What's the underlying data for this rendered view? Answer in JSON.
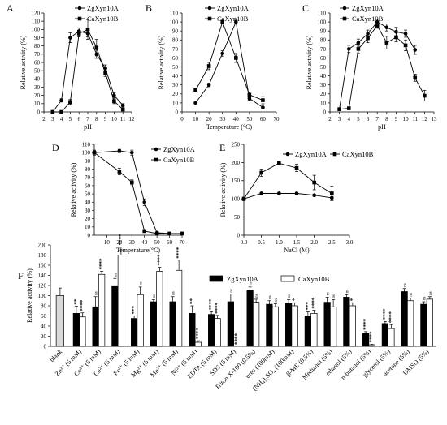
{
  "chart_data": [
    {
      "panel": "A",
      "type": "line",
      "xlabel": "pH",
      "ylabel": "Relative activity (%)",
      "xlim": [
        2,
        12
      ],
      "ylim": [
        0,
        120
      ],
      "xticks": [
        "2",
        "3",
        "4",
        "5",
        "6",
        "7",
        "8",
        "9",
        "10",
        "11",
        "12"
      ],
      "yticks": [
        "0",
        "10",
        "20",
        "30",
        "40",
        "50",
        "60",
        "70",
        "80",
        "90",
        "100",
        "110",
        "120"
      ],
      "legend_position": "top-right",
      "series": [
        {
          "name": "ZgXyn10A",
          "marker": "circle",
          "color": "#000000",
          "x": [
            3,
            4,
            5,
            6,
            7,
            8,
            9,
            10,
            11
          ],
          "y": [
            0,
            14,
            90,
            98,
            95,
            70,
            53,
            20,
            8
          ],
          "err": [
            0,
            2,
            6,
            4,
            4,
            5,
            4,
            3,
            2
          ]
        },
        {
          "name": "CaXyn10B",
          "marker": "square",
          "color": "#000000",
          "x": [
            3,
            4,
            5,
            6,
            7,
            8,
            9,
            10,
            11
          ],
          "y": [
            0,
            0,
            12,
            95,
            100,
            78,
            47,
            13,
            3
          ],
          "err": [
            0,
            0,
            3,
            4,
            12,
            10,
            4,
            3,
            2
          ]
        }
      ]
    },
    {
      "panel": "B",
      "type": "line",
      "xlabel": "Temperature (°C)",
      "ylabel": "Relative activity (%)",
      "xlim": [
        0,
        70
      ],
      "ylim": [
        0,
        110
      ],
      "xticks": [
        "0",
        "10",
        "20",
        "30",
        "40",
        "50",
        "60",
        "70"
      ],
      "yticks": [
        "0",
        "10",
        "20",
        "30",
        "40",
        "50",
        "60",
        "70",
        "80",
        "90",
        "100",
        "110"
      ],
      "legend_position": "top",
      "series": [
        {
          "name": "ZgXyn10A",
          "marker": "circle",
          "color": "#000000",
          "x": [
            10,
            20,
            30,
            40,
            50,
            60
          ],
          "y": [
            10,
            30,
            65,
            100,
            15,
            5
          ],
          "err": [
            1,
            2,
            3,
            2,
            2,
            1
          ]
        },
        {
          "name": "CaXyn10B",
          "marker": "square",
          "color": "#000000",
          "x": [
            10,
            20,
            30,
            40,
            50,
            60
          ],
          "y": [
            24,
            51,
            100,
            60,
            19,
            13
          ],
          "err": [
            2,
            4,
            2,
            5,
            3,
            4
          ]
        }
      ]
    },
    {
      "panel": "C",
      "type": "line",
      "xlabel": "pH",
      "ylabel": "Relative activity (%)",
      "xlim": [
        2,
        13
      ],
      "ylim": [
        0,
        110
      ],
      "xticks": [
        "2",
        "3",
        "4",
        "5",
        "6",
        "7",
        "8",
        "9",
        "10",
        "11",
        "12",
        "13"
      ],
      "yticks": [
        "0",
        "10",
        "20",
        "30",
        "40",
        "50",
        "60",
        "70",
        "80",
        "90",
        "100",
        "110"
      ],
      "legend_position": "top",
      "series": [
        {
          "name": "ZgXyn10A",
          "marker": "circle",
          "color": "#000000",
          "x": [
            3,
            4,
            5,
            6,
            7,
            8,
            9,
            10,
            11
          ],
          "y": [
            3,
            70,
            77,
            87,
            100,
            94,
            89,
            87,
            69
          ],
          "err": [
            1,
            4,
            4,
            4,
            3,
            4,
            5,
            4,
            5
          ]
        },
        {
          "name": "CaXyn10B",
          "marker": "square",
          "color": "#000000",
          "x": [
            3,
            4,
            5,
            6,
            7,
            8,
            9,
            10,
            11,
            12
          ],
          "y": [
            3,
            4,
            70,
            82,
            96,
            77,
            83,
            74,
            38,
            18
          ],
          "err": [
            1,
            1,
            5,
            5,
            3,
            7,
            5,
            6,
            4,
            6
          ]
        }
      ]
    },
    {
      "panel": "D",
      "type": "line",
      "xlabel": "Temperature(°C)",
      "ylabel": "Relative activity (%)",
      "xlim": [
        0,
        70
      ],
      "ylim": [
        0,
        110
      ],
      "xticks": [
        "10",
        "20",
        "30",
        "40",
        "50",
        "60",
        "70"
      ],
      "yticks": [
        "0",
        "10",
        "20",
        "30",
        "40",
        "50",
        "60",
        "70",
        "80",
        "90",
        "100",
        "110"
      ],
      "legend_position": "top-right",
      "series": [
        {
          "name": "ZgXyn10A",
          "marker": "circle",
          "color": "#000000",
          "x": [
            0,
            20,
            30,
            40,
            50,
            60,
            70
          ],
          "y": [
            100,
            102,
            100,
            40,
            3,
            2,
            2
          ],
          "err": [
            2,
            2,
            3,
            4,
            1,
            1,
            1
          ]
        },
        {
          "name": "CaXyn10B",
          "marker": "square",
          "color": "#000000",
          "x": [
            0,
            20,
            30,
            40,
            50,
            60,
            70
          ],
          "y": [
            100,
            77,
            64,
            5,
            2,
            2,
            2
          ],
          "err": [
            3,
            4,
            3,
            1,
            1,
            1,
            1
          ]
        }
      ]
    },
    {
      "panel": "E",
      "type": "line",
      "xlabel": "NaCl (M)",
      "ylabel": "Relative activity (%)",
      "xlim": [
        0,
        3
      ],
      "ylim": [
        0,
        250
      ],
      "xticks": [
        "0.0",
        "0.5",
        "1.0",
        "1.5",
        "2.0",
        "2.5",
        "3.0"
      ],
      "yticks": [
        "0",
        "50",
        "100",
        "150",
        "200",
        "250"
      ],
      "legend_position": "top",
      "series": [
        {
          "name": "ZgXyn10A",
          "marker": "circle",
          "color": "#000000",
          "x": [
            0,
            0.5,
            1.0,
            1.5,
            2.0,
            2.5
          ],
          "y": [
            100,
            115,
            115,
            115,
            110,
            103
          ],
          "err": [
            3,
            3,
            3,
            3,
            3,
            3
          ]
        },
        {
          "name": "CaXyn10B",
          "marker": "square",
          "color": "#000000",
          "x": [
            0,
            0.5,
            1.0,
            1.5,
            2.0,
            2.5
          ],
          "y": [
            100,
            172,
            198,
            185,
            145,
            115
          ],
          "err": [
            5,
            10,
            5,
            10,
            20,
            20
          ]
        }
      ]
    },
    {
      "panel": "F",
      "type": "bar",
      "ylabel": "Relative activity (%)",
      "ylim": [
        0,
        200
      ],
      "yticks": [
        "0",
        "20",
        "40",
        "60",
        "80",
        "100",
        "120",
        "140",
        "160",
        "180",
        "200"
      ],
      "legend_position": "top",
      "categories": [
        "blank",
        "Zn²⁺ (5 mM)",
        "Co²⁺ (5 mM)",
        "Ca²⁺ (5 mM)",
        "Fe²⁺ (5 mM)",
        "Mg²⁺ (5 mM)",
        "Mn²⁺ (5 mM)",
        "Ni²⁺ (5 mM)",
        "EDTA (5 mM)",
        "SDS (5 mM)",
        "Triton X-100 (0.5%)",
        "urea (100mM)",
        "(NH₄)₂SO₄ (100mM)",
        "β-ME (0.5%)",
        "Methanol (5%)",
        "ethanol (5%)",
        "n-butanol (5%)",
        "glycerol (5%)",
        "acetone (5%)",
        "DMSO (5%)"
      ],
      "series": [
        {
          "name": "ZgXyn10A",
          "color": "#000000",
          "values": [
            100,
            65,
            78,
            118,
            55,
            88,
            88,
            65,
            63,
            88,
            110,
            83,
            85,
            60,
            87,
            97,
            25,
            45,
            108,
            83
          ],
          "err": [
            15,
            14,
            20,
            16,
            5,
            4,
            10,
            15,
            5,
            15,
            7,
            7,
            7,
            8,
            10,
            5,
            4,
            4,
            6,
            5
          ],
          "labels": [
            "",
            "**",
            "ns",
            "ns",
            "***",
            "ns",
            "ns",
            "**",
            "****",
            "ns",
            "ns",
            "ns",
            "ns",
            "***",
            "ns",
            "ns",
            "****",
            "****",
            "ns",
            "ns"
          ]
        },
        {
          "name": "CaXyn10B",
          "color": "#ffffff",
          "values": [
            null,
            58,
            142,
            180,
            102,
            148,
            150,
            8,
            55,
            0,
            87,
            78,
            80,
            65,
            78,
            80,
            3,
            35,
            90,
            93
          ],
          "err": [
            null,
            8,
            6,
            16,
            15,
            8,
            20,
            3,
            6,
            0,
            6,
            6,
            6,
            6,
            14,
            6,
            1,
            8,
            5,
            5
          ],
          "labels": [
            "",
            "****",
            "****",
            "****",
            "ns",
            "****",
            "****",
            "****",
            "****",
            "****",
            "ns",
            "ns",
            "*",
            "****",
            "ns",
            "*",
            "****",
            "****",
            "ns",
            "ns"
          ]
        }
      ]
    }
  ]
}
